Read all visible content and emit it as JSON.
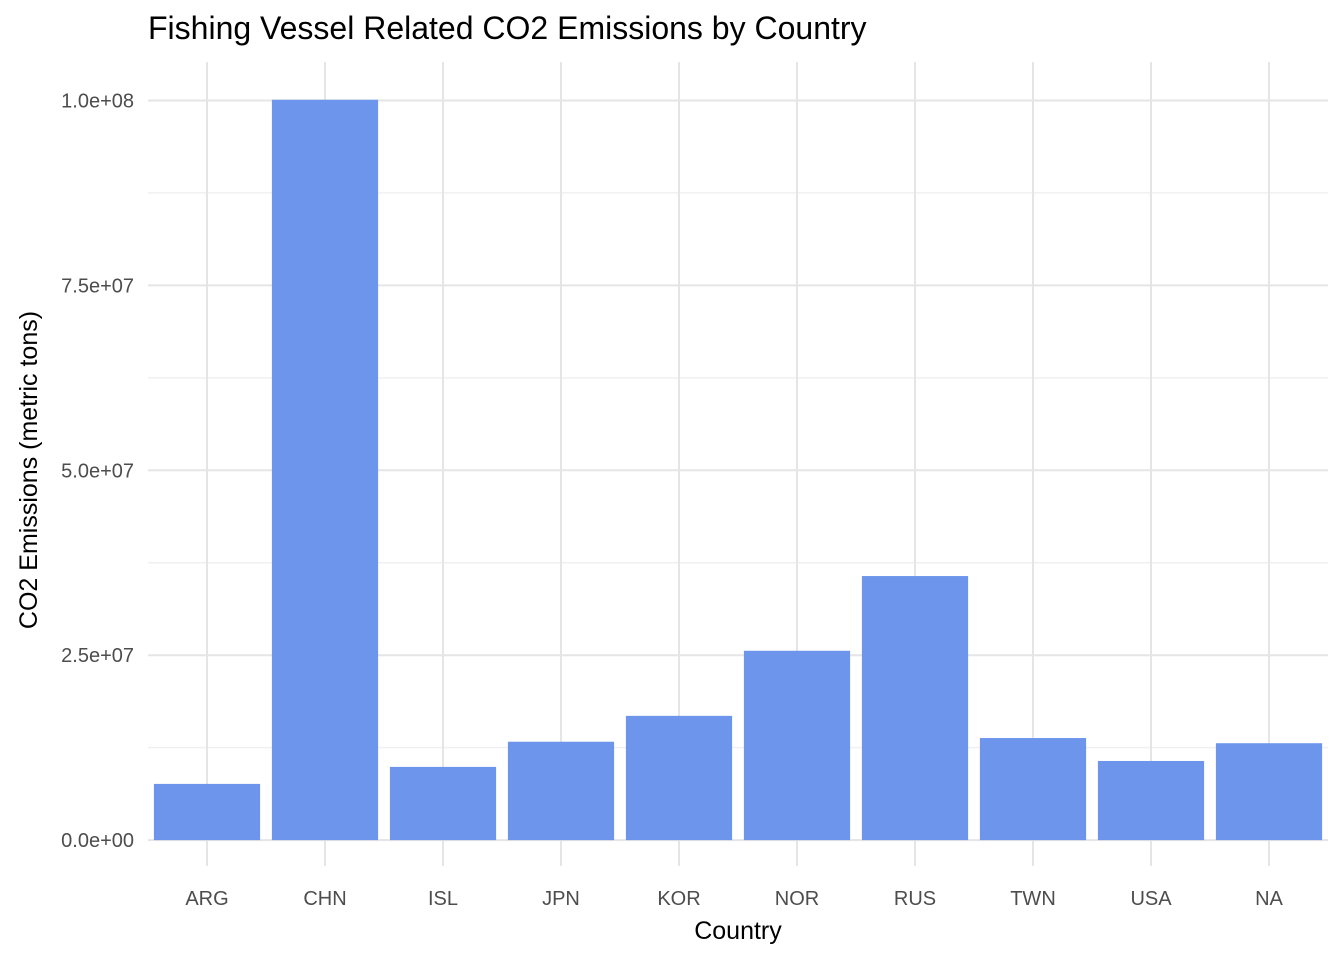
{
  "chart_data": {
    "type": "bar",
    "title": "Fishing Vessel Related CO2 Emissions by Country",
    "xlabel": "Country",
    "ylabel": "CO2 Emissions (metric tons)",
    "categories": [
      "ARG",
      "CHN",
      "ISL",
      "JPN",
      "KOR",
      "NOR",
      "RUS",
      "TWN",
      "USA",
      "NA"
    ],
    "values": [
      7600000,
      100100000,
      9900000,
      13300000,
      16800000,
      25600000,
      35700000,
      13800000,
      10700000,
      13100000
    ],
    "ylim": [
      -3500000,
      105200000
    ],
    "yticks": [
      0,
      25000000,
      50000000,
      75000000,
      100000000
    ],
    "ytick_labels": [
      "0.0e+00",
      "2.5e+07",
      "5.0e+07",
      "7.5e+07",
      "1.0e+08"
    ],
    "bar_color": "#6d95eb",
    "grid": true,
    "legend": "none"
  }
}
